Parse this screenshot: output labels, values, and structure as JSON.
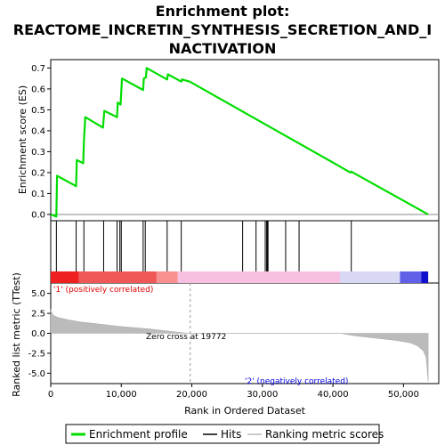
{
  "chart_data": {
    "type": "line",
    "title_lines": [
      "Enrichment plot:",
      "REACTOME_INCRETIN_SYNTHESIS_SECRETION_AND_I",
      "NACTIVATION"
    ],
    "panels": {
      "es": {
        "ylabel": "Enrichment score (ES)",
        "ylim": [
          -0.03,
          0.74
        ],
        "yticks": [
          "0.0",
          "0.1",
          "0.2",
          "0.3",
          "0.4",
          "0.5",
          "0.6",
          "0.7"
        ],
        "ytick_values": [
          0.0,
          0.1,
          0.2,
          0.3,
          0.4,
          0.5,
          0.6,
          0.7
        ],
        "series": [
          {
            "name": "Enrichment profile",
            "color": "#00dd00",
            "x": [
              0,
              800,
              900,
              3600,
              3700,
              4600,
              4700,
              4900,
              7400,
              7600,
              9400,
              9500,
              9900,
              10000,
              10100,
              13100,
              13200,
              13500,
              13600,
              16500,
              16600,
              18500,
              18600,
              19700,
              42500,
              42600,
              53500
            ],
            "y": [
              0.0,
              -0.01,
              0.185,
              0.135,
              0.26,
              0.245,
              0.35,
              0.465,
              0.415,
              0.495,
              0.465,
              0.535,
              0.525,
              0.59,
              0.65,
              0.595,
              0.65,
              0.655,
              0.7,
              0.645,
              0.67,
              0.635,
              0.645,
              0.635,
              0.2,
              0.205,
              0.0
            ]
          }
        ]
      },
      "hits": {
        "positions": [
          800,
          3600,
          4700,
          7500,
          9400,
          9800,
          10000,
          13100,
          13400,
          16500,
          18500,
          27200,
          29100,
          30400,
          30600,
          30700,
          30800,
          33300,
          35200,
          42600
        ]
      },
      "metric": {
        "ylabel": "Ranked list metric (TTest)",
        "ylim": [
          -6.3,
          6.3
        ],
        "yticks": [
          "5.0",
          "2.5",
          "0.0",
          "-2.5",
          "-5.0"
        ],
        "ytick_values": [
          5.0,
          2.5,
          0.0,
          -2.5,
          -5.0
        ],
        "profile_x": [
          0,
          300,
          1000,
          2500,
          4000,
          6000,
          8000,
          10000,
          12000,
          14000,
          16000,
          18000,
          19772,
          25000,
          30000,
          35000,
          41000,
          43000,
          46000,
          49000,
          51000,
          52000,
          52800,
          53200,
          53500
        ],
        "profile_y": [
          3.0,
          2.3,
          2.0,
          1.7,
          1.45,
          1.25,
          1.05,
          0.85,
          0.7,
          0.55,
          0.35,
          0.15,
          0.0,
          0.0,
          0.0,
          0.0,
          0.0,
          -0.3,
          -0.6,
          -0.9,
          -1.2,
          -1.6,
          -2.2,
          -3.0,
          -6.0
        ],
        "zero_cross_label": "Zero cross at 19772",
        "zero_cross": 19772,
        "pos_label": "'1' (positively correlated)",
        "neg_label": "'2' (negatively correlated)",
        "pos_color": "#dd0000",
        "neg_color": "#0000dd"
      }
    },
    "xlabel": "Rank in Ordered Dataset",
    "xlim": [
      0,
      55000
    ],
    "xticks": [
      "0",
      "10,000",
      "20,000",
      "30,000",
      "40,000",
      "50,000"
    ],
    "xtick_values": [
      0,
      10000,
      20000,
      30000,
      40000,
      50000
    ],
    "legend": {
      "placement": "bottom",
      "items": [
        {
          "label": "Enrichment profile",
          "color": "#00dd00"
        },
        {
          "label": "Hits",
          "color": "#000000"
        },
        {
          "label": "Ranking metric scores",
          "color": "#bbbbbb"
        }
      ]
    }
  }
}
